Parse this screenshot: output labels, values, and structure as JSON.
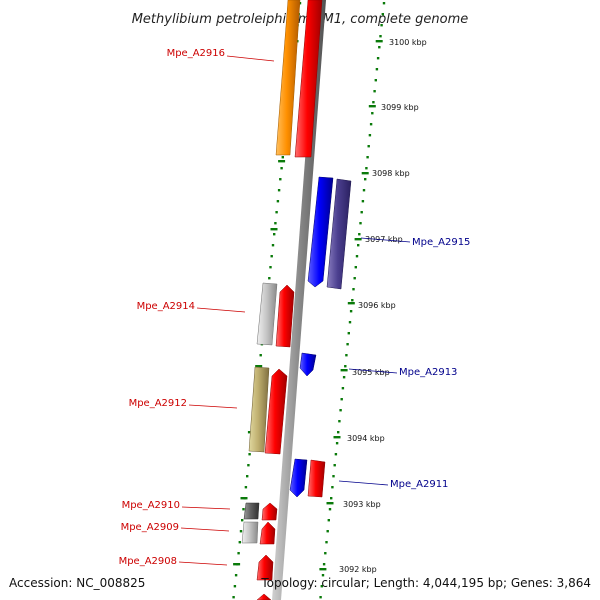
{
  "title": "Methylibium petroleiphilum PM1, complete genome",
  "scale_labels": [
    "3100 kbp",
    "3099 kbp",
    "3098 kbp",
    "3097 kbp",
    "3096 kbp",
    "3095 kbp",
    "3094 kbp",
    "3093 kbp",
    "3092 kbp"
  ],
  "genes_left": [
    "Mpe_A2916",
    "Mpe_A2914",
    "Mpe_A2912",
    "Mpe_A2910",
    "Mpe_A2909",
    "Mpe_A2908"
  ],
  "genes_right": [
    "Mpe_A2915",
    "Mpe_A2913",
    "Mpe_A2911"
  ],
  "footer": {
    "accession": "Accession: NC_008825",
    "topology": "Topology: circular; Length: 4,044,195 bp; Genes: 3,864"
  },
  "colors": {
    "forward_strand": "#ff0000",
    "reverse_strand": "#0000ff",
    "backbone": "#808080",
    "scale_ticks": "#0a7a0a",
    "label_forward": "#cc0000",
    "label_reverse": "#00008b"
  }
}
